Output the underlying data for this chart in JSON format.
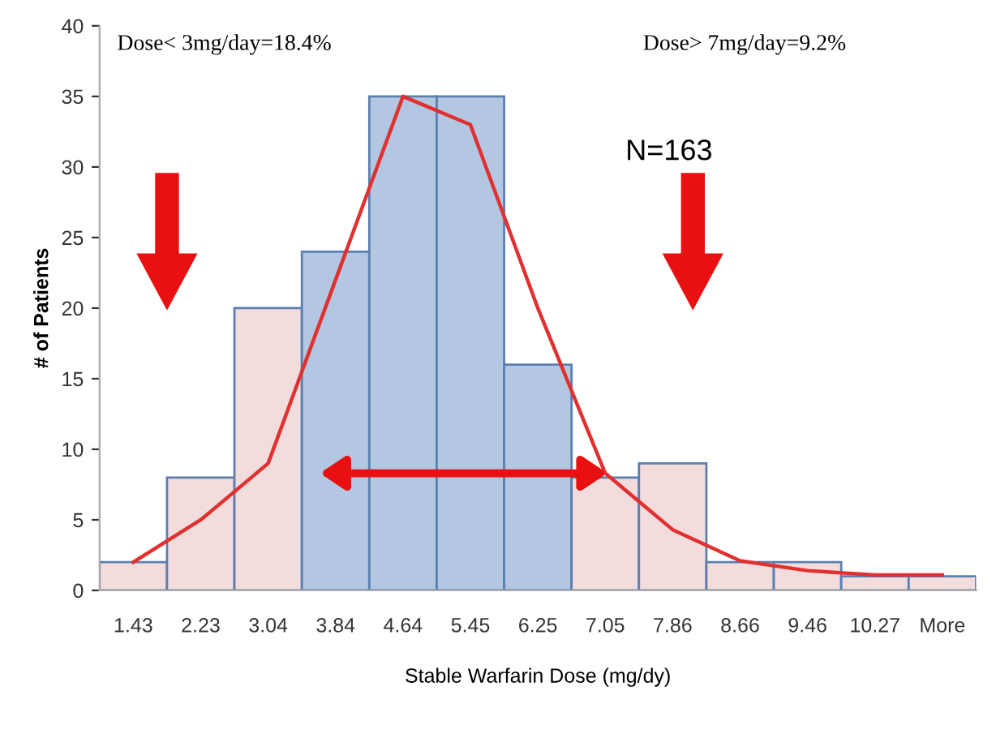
{
  "chart_data": {
    "type": "bar",
    "xlabel": "Stable Warfarin Dose (mg/dy)",
    "ylabel": "# of Patients",
    "categories": [
      "1.43",
      "2.23",
      "3.04",
      "3.84",
      "4.64",
      "5.45",
      "6.25",
      "7.05",
      "7.86",
      "8.66",
      "9.46",
      "10.27",
      "More"
    ],
    "series": [
      {
        "values": [
          2,
          8,
          20,
          24,
          35,
          35,
          16,
          8,
          9,
          2,
          2,
          1,
          1
        ],
        "colors": [
          "#f2dcdc",
          "#f2dcdc",
          "#f2dcdc",
          "#b4c7e2",
          "#b4c7e2",
          "#b4c7e2",
          "#b4c7e2",
          "#f2dcdc",
          "#f2dcdc",
          "#f2dcdc",
          "#f2dcdc",
          "#f2dcdc",
          "#f2dcdc"
        ]
      },
      {
        "type": "line",
        "color": "#e03030",
        "values": [
          2,
          5,
          9,
          22,
          35,
          33,
          20,
          8.3,
          4.3,
          2.1,
          1.4,
          1.1,
          1.1
        ]
      }
    ],
    "ylim": [
      0,
      40
    ],
    "yticks": [
      0,
      5,
      10,
      15,
      20,
      25,
      30,
      35,
      40
    ],
    "grid": false,
    "legend": false,
    "annotations": [
      "Dose< 3mg/day=18.4%",
      "Dose> 7mg/day=9.2%",
      "N=163"
    ]
  }
}
